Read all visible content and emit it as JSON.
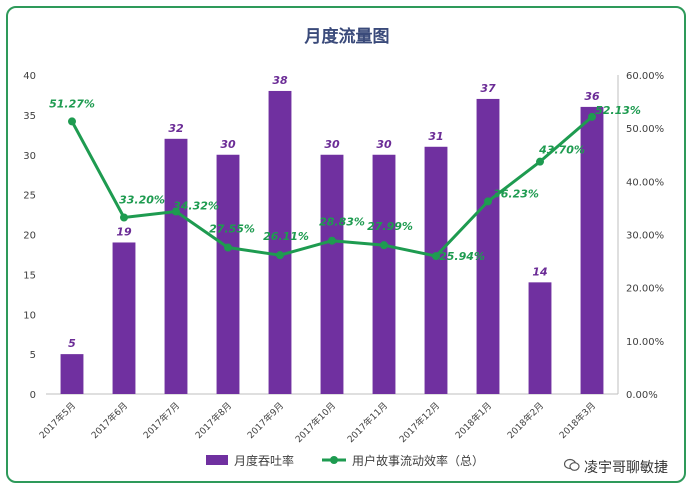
{
  "chart_data": {
    "type": "bar",
    "title": "月度流量图",
    "categories": [
      "2017年5月",
      "2017年6月",
      "2017年7月",
      "2017年8月",
      "2017年9月",
      "2017年10月",
      "2017年11月",
      "2017年12月",
      "2018年1月",
      "2018年2月",
      "2018年3月"
    ],
    "series": [
      {
        "name": "月度吞吐率",
        "type": "bar",
        "axis": "left",
        "color": "#7030a0",
        "values": [
          5,
          19,
          32,
          30,
          38,
          30,
          30,
          31,
          37,
          14,
          36
        ]
      },
      {
        "name": "用户故事流动效率（总）",
        "type": "line",
        "axis": "right",
        "color": "#1e9b50",
        "values": [
          51.27,
          33.2,
          34.32,
          27.55,
          26.11,
          28.83,
          27.99,
          25.94,
          36.23,
          43.7,
          52.13
        ],
        "labels": [
          "51.27%",
          "33.20%",
          "34.32%",
          "27.55%",
          "26.11%",
          "28.83%",
          "27.99%",
          "25.94%",
          "36.23%",
          "43.70%",
          "52.13%"
        ]
      }
    ],
    "y_left": {
      "min": 0,
      "max": 40,
      "ticks": [
        "0",
        "5",
        "10",
        "15",
        "20",
        "25",
        "30",
        "35",
        "40"
      ]
    },
    "y_right": {
      "min": 0,
      "max": 60,
      "ticks": [
        "0.00%",
        "10.00%",
        "20.00%",
        "30.00%",
        "40.00%",
        "50.00%",
        "60.00%"
      ]
    },
    "legend_position": "bottom",
    "grid": false
  },
  "watermark": "凌宇哥聊敏捷"
}
